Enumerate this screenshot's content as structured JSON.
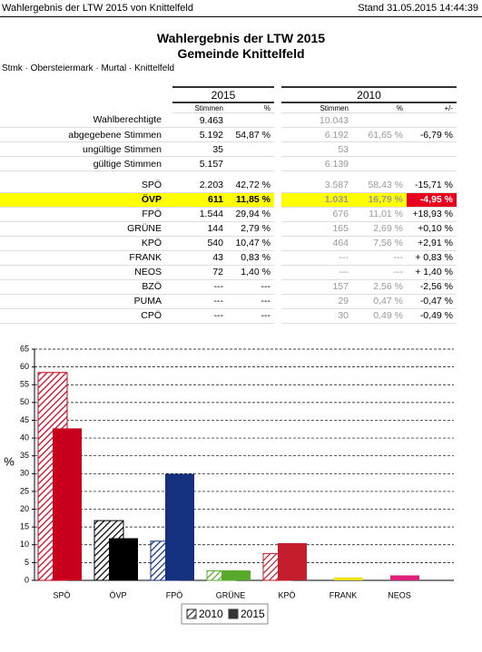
{
  "header": {
    "left": "Wahlergebnis der LTW 2015 von Knittelfeld",
    "right": "Stand 31.05.2015 14:44:39"
  },
  "title": [
    "Wahlergebnis der LTW 2015",
    "Gemeinde Knittelfeld"
  ],
  "breadcrumb": "Stmk · Obersteiermark · Murtal · Knittelfeld",
  "table": {
    "columns": {
      "year_2015": "2015",
      "year_2010": "2010",
      "stimmen": "Stimmen",
      "prozent": "%",
      "diff": "+/-"
    },
    "summary_rows": [
      {
        "label": "Wahlberechtigte",
        "s2015": "9.463",
        "s2010": "10.043"
      },
      {
        "label": "abgegebene Stimmen",
        "s2015": "5.192",
        "p2015": "54,87 %",
        "s2010": "6.192",
        "p2010": "61,65 %",
        "diff": "-6,79 %"
      },
      {
        "label": "ungültige Stimmen",
        "s2015": "35",
        "s2010": "53"
      },
      {
        "label": "gültige Stimmen",
        "s2015": "5.157",
        "s2010": "6.139"
      }
    ],
    "party_rows": [
      {
        "label": "SPÖ",
        "s2015": "2.203",
        "p2015": "42,72 %",
        "s2010": "3.587",
        "p2010": "58,43 %",
        "diff": "-15,71 %"
      },
      {
        "label": "ÖVP",
        "s2015": "611",
        "p2015": "11,85 %",
        "s2010": "1.031",
        "p2010": "16,79 %",
        "diff": "-4,95 %",
        "highlighted": true
      },
      {
        "label": "FPÖ",
        "s2015": "1.544",
        "p2015": "29,94 %",
        "s2010": "676",
        "p2010": "11,01 %",
        "diff": "+18,93 %"
      },
      {
        "label": "GRÜNE",
        "s2015": "144",
        "p2015": "2,79 %",
        "s2010": "165",
        "p2010": "2,69 %",
        "diff": "+0,10 %"
      },
      {
        "label": "KPÖ",
        "s2015": "540",
        "p2015": "10,47 %",
        "s2010": "464",
        "p2010": "7,56 %",
        "diff": "+2,91 %"
      },
      {
        "label": "FRANK",
        "s2015": "43",
        "p2015": "0,83 %",
        "s2010": "---",
        "p2010": "---",
        "diff": "+ 0,83 %"
      },
      {
        "label": "NEOS",
        "s2015": "72",
        "p2015": "1,40 %",
        "s2010": "---",
        "p2010": "---",
        "diff": "+ 1,40 %"
      },
      {
        "label": "BZÖ",
        "s2015": "---",
        "p2015": "---",
        "s2010": "157",
        "p2010": "2,56 %",
        "diff": "-2,56 %"
      },
      {
        "label": "PUMA",
        "s2015": "---",
        "p2015": "---",
        "s2010": "29",
        "p2010": "0,47 %",
        "diff": "-0,47 %"
      },
      {
        "label": "CPÖ",
        "s2015": "---",
        "p2015": "---",
        "s2010": "30",
        "p2010": "0,49 %",
        "diff": "-0,49 %"
      }
    ]
  },
  "chart_data": {
    "type": "bar",
    "ylabel": "%",
    "categories": [
      "SPÖ",
      "ÖVP",
      "FPÖ",
      "GRÜNE",
      "KPÖ",
      "FRANK",
      "NEOS"
    ],
    "colors": [
      "#c8001e",
      "#000000",
      "#14307f",
      "#58a82a",
      "#c41e2e",
      "#f0e01a",
      "#e0207a"
    ],
    "series": [
      {
        "name": "2010",
        "style": "hatched",
        "values": [
          58.43,
          16.79,
          11.01,
          2.69,
          7.56,
          null,
          null
        ]
      },
      {
        "name": "2015",
        "style": "solid",
        "values": [
          42.72,
          11.85,
          29.94,
          2.79,
          10.47,
          0.83,
          1.4
        ]
      }
    ],
    "ylim": [
      0,
      65
    ],
    "yticks": [
      0,
      5,
      10,
      15,
      20,
      25,
      30,
      35,
      40,
      45,
      50,
      55,
      60,
      65
    ],
    "grid": true
  }
}
